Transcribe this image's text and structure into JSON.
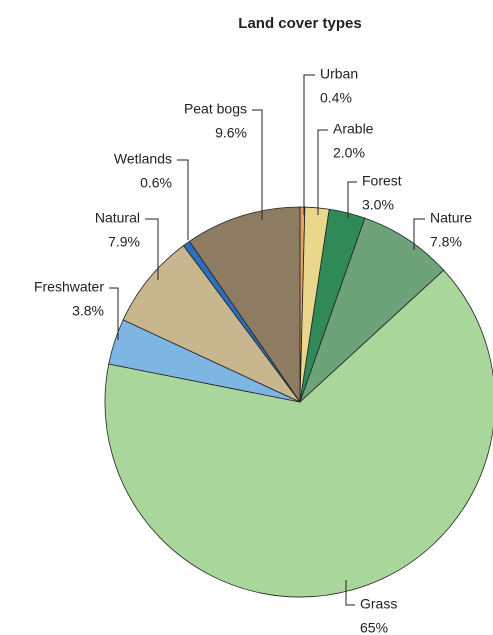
{
  "chart_data": {
    "type": "pie",
    "title": "Land cover types",
    "categories": [
      "Urban",
      "Arable",
      "Forest",
      "Nature",
      "Grass",
      "Freshwater",
      "Natural",
      "Wetlands",
      "Peat bogs"
    ],
    "values": [
      0.4,
      2.0,
      3.0,
      7.8,
      65,
      3.8,
      7.9,
      0.6,
      9.6
    ],
    "value_labels": [
      "0.4%",
      "2.0%",
      "3.0%",
      "7.8%",
      "65%",
      "3.8%",
      "7.9%",
      "0.6%",
      "9.6%"
    ],
    "colors": [
      "#e2a265",
      "#e9d78e",
      "#2f8a57",
      "#6ea37a",
      "#a9d69a",
      "#7db5e3",
      "#c8b68e",
      "#2b6fbd",
      "#8e7c62"
    ]
  }
}
